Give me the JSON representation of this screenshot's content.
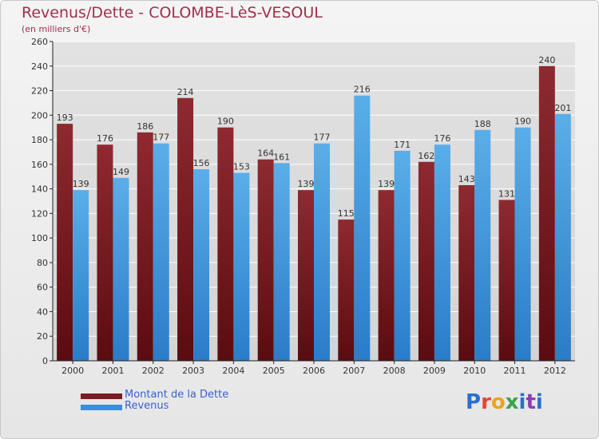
{
  "header": {
    "title": "Revenus/Dette - COLOMBE-LèS-VESOUL",
    "subtitle": "(en milliers d'€)"
  },
  "logo": {
    "text": "Proxiti"
  },
  "colors": {
    "dette": "#7a1c22",
    "revenus": "#3a8fd8",
    "grid": "#ffffff",
    "axis": "#222222",
    "label": "#333333"
  },
  "chart_data": {
    "type": "bar",
    "title": "Revenus/Dette - COLOMBE-LèS-VESOUL",
    "subtitle": "(en milliers d'€)",
    "xlabel": "",
    "ylabel": "",
    "categories": [
      "2000",
      "2001",
      "2002",
      "2003",
      "2004",
      "2005",
      "2006",
      "2007",
      "2008",
      "2009",
      "2010",
      "2011",
      "2012"
    ],
    "series": [
      {
        "name": "Montant de la Dette",
        "values": [
          193,
          176,
          186,
          214,
          190,
          164,
          139,
          115,
          139,
          162,
          143,
          131,
          240
        ]
      },
      {
        "name": "Revenus",
        "values": [
          139,
          149,
          177,
          156,
          153,
          161,
          177,
          216,
          171,
          176,
          188,
          190,
          201
        ]
      }
    ],
    "ylim": [
      0,
      260
    ],
    "yticks": [
      0,
      20,
      40,
      60,
      80,
      100,
      120,
      140,
      160,
      180,
      200,
      220,
      240,
      260
    ],
    "grid": true,
    "legend_position": "bottom-left"
  }
}
